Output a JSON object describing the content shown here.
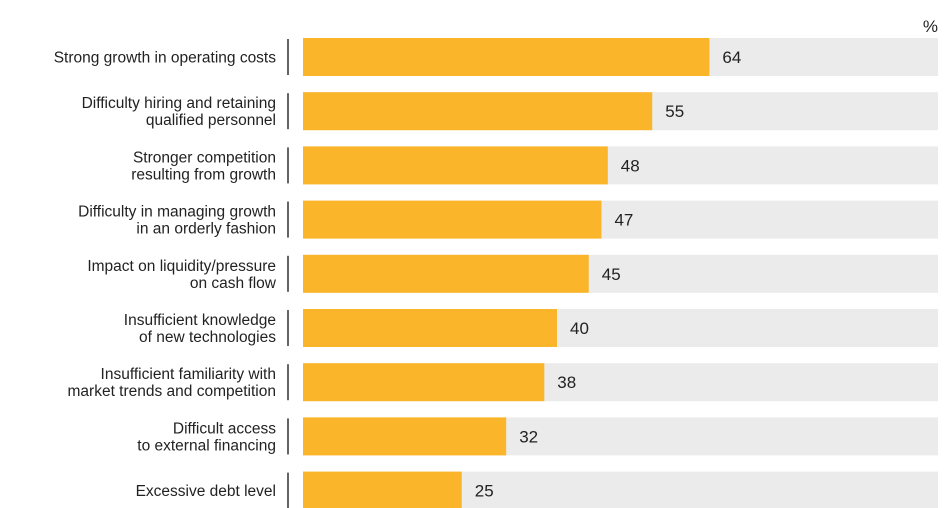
{
  "chart_data": {
    "type": "bar",
    "orientation": "horizontal",
    "unit": "%",
    "categories": [
      [
        "Strong growth in operating costs"
      ],
      [
        "Difficulty hiring and retaining",
        "qualified personnel"
      ],
      [
        "Stronger competition",
        "resulting from growth"
      ],
      [
        "Difficulty in managing growth",
        "in an orderly fashion"
      ],
      [
        "Impact on liquidity/pressure",
        "on cash flow"
      ],
      [
        "Insufficient knowledge",
        "of new technologies"
      ],
      [
        "Insufficient familiarity with",
        "market trends and competition"
      ],
      [
        "Difficult access",
        "to external financing"
      ],
      [
        "Excessive debt level"
      ]
    ],
    "values": [
      64,
      55,
      48,
      47,
      45,
      40,
      38,
      32,
      25
    ],
    "value_labels": [
      "64",
      "55",
      "48",
      "47",
      "45",
      "40",
      "38",
      "32",
      "25"
    ],
    "xlim": [
      0,
      100
    ],
    "grid": false,
    "legend": "none",
    "colors": {
      "bar": "#FBB52A",
      "track": "#EBEBEB",
      "separator": "#222222",
      "text": "#222222"
    }
  }
}
